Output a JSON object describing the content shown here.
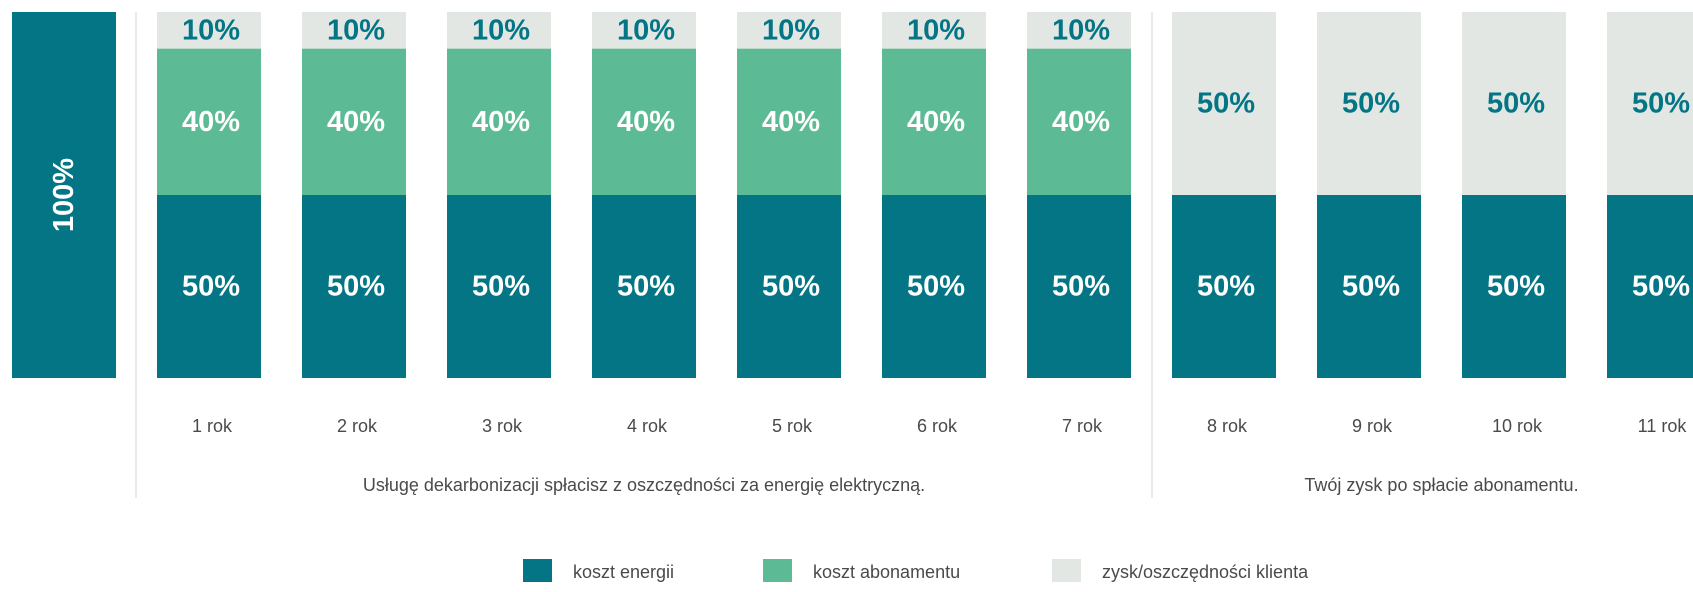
{
  "colors": {
    "energy": "#037585",
    "subscription": "#5cbb94",
    "savings": "#e3e7e4",
    "label_light": "#ffffff",
    "label_dark": "#037585",
    "divider": "#d6d6d6"
  },
  "chart_data": {
    "type": "bar",
    "stacked": true,
    "unit": "%",
    "ylim": [
      0,
      100
    ],
    "grid": false,
    "legend_position": "bottom-center",
    "total_bar": {
      "label": "100%",
      "value": 100
    },
    "categories": [
      "1 rok",
      "2 rok",
      "3 rok",
      "4 rok",
      "5 rok",
      "6 rok",
      "7 rok",
      "8 rok",
      "9 rok",
      "10 rok",
      "11 rok"
    ],
    "series": [
      {
        "name": "koszt energii",
        "color_key": "energy",
        "values": [
          50,
          50,
          50,
          50,
          50,
          50,
          50,
          50,
          50,
          50,
          50
        ]
      },
      {
        "name": "koszt abonamentu",
        "color_key": "subscription",
        "values": [
          40,
          40,
          40,
          40,
          40,
          40,
          40,
          0,
          0,
          0,
          0
        ]
      },
      {
        "name": "zysk/oszczędności klienta",
        "color_key": "savings",
        "values": [
          10,
          10,
          10,
          10,
          10,
          10,
          10,
          50,
          50,
          50,
          50
        ]
      }
    ],
    "groups": [
      {
        "caption": "Usługę dekarbonizacji spłacisz z oszczędności za energię elektryczną.",
        "start": 0,
        "end": 6
      },
      {
        "caption": "Twój zysk po spłacie abonamentu.",
        "start": 7,
        "end": 10
      }
    ]
  }
}
